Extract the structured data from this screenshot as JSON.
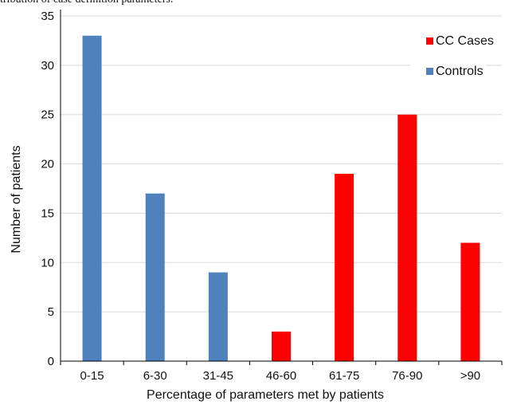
{
  "caption_fragment": "tribution of case definition parameters.",
  "colors": {
    "cc_cases": "#ff0000",
    "controls": "#4f81bd",
    "gridline": "#d9d9d9",
    "axis": "#000000"
  },
  "chart_data": {
    "type": "bar",
    "title": "",
    "xlabel": "Percentage of parameters met by patients",
    "ylabel": "Number of patients",
    "ylim": [
      0,
      35
    ],
    "yticks": [
      0,
      5,
      10,
      15,
      20,
      25,
      30,
      35
    ],
    "grid": "horizontal",
    "legend_position": "top-right",
    "categories": [
      "0-15",
      "6-30",
      "31-45",
      "46-60",
      "61-75",
      "76-90",
      ">90"
    ],
    "series": [
      {
        "name": "CC Cases",
        "color": "#ff0000",
        "values": [
          null,
          null,
          null,
          3,
          19,
          25,
          12
        ]
      },
      {
        "name": "Controls",
        "color": "#4f81bd",
        "values": [
          33,
          17,
          9,
          null,
          null,
          null,
          null
        ]
      }
    ]
  }
}
